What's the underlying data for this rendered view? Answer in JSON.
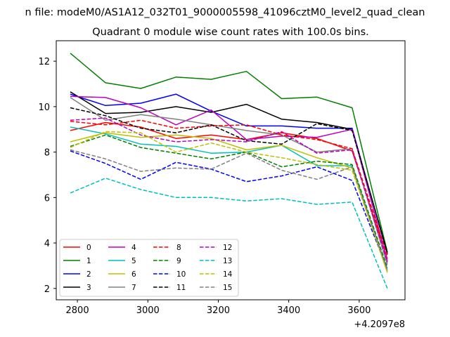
{
  "chart_data": {
    "type": "line",
    "figure_title": "n file: modeM0/AS1A12_032T01_9000005598_41096cztM0_level2_quad_clean",
    "title": "Quadrant 0 module wise count rates with 100.0s bins.",
    "xlabel": "",
    "ylabel": "",
    "offset_label": "+4.2097e8",
    "xlim": [
      2740,
      3730
    ],
    "ylim": [
      1.5,
      12.9
    ],
    "xticks": [
      2800,
      3000,
      3200,
      3400,
      3600
    ],
    "yticks": [
      2,
      4,
      6,
      8,
      10,
      12
    ],
    "x": [
      2780,
      2880,
      2980,
      3080,
      3180,
      3280,
      3380,
      3480,
      3580,
      3680
    ],
    "legend_position": "lower-left",
    "series": [
      {
        "name": "0",
        "color": "#ff0000",
        "style": "solid",
        "values": [
          8.95,
          9.3,
          9.1,
          8.6,
          8.75,
          8.55,
          8.85,
          8.6,
          8.05,
          3.3
        ]
      },
      {
        "name": "1",
        "color": "#008000",
        "style": "solid",
        "values": [
          12.35,
          11.05,
          10.8,
          11.3,
          11.2,
          11.55,
          10.35,
          10.42,
          9.95,
          3.6
        ]
      },
      {
        "name": "2",
        "color": "#0000ff",
        "style": "solid",
        "values": [
          10.55,
          10.05,
          10.15,
          10.55,
          9.8,
          9.15,
          9.15,
          9.05,
          9.05,
          3.5
        ]
      },
      {
        "name": "3",
        "color": "#000000",
        "style": "solid",
        "values": [
          10.65,
          9.7,
          9.75,
          10.0,
          9.75,
          10.1,
          9.45,
          9.3,
          9.0,
          3.55
        ]
      },
      {
        "name": "4",
        "color": "#bf00bf",
        "style": "solid",
        "values": [
          10.45,
          10.4,
          9.95,
          9.2,
          9.85,
          8.55,
          8.7,
          8.65,
          9.0,
          3.2
        ]
      },
      {
        "name": "5",
        "color": "#00bfbf",
        "style": "solid",
        "values": [
          9.1,
          8.8,
          8.35,
          8.25,
          7.95,
          8.0,
          8.3,
          7.4,
          7.4,
          2.8
        ]
      },
      {
        "name": "6",
        "color": "#bfbf00",
        "style": "solid",
        "values": [
          8.45,
          8.85,
          8.65,
          8.75,
          8.6,
          8.1,
          8.3,
          7.75,
          7.3,
          2.7
        ]
      },
      {
        "name": "7",
        "color": "#808080",
        "style": "solid",
        "values": [
          10.4,
          9.4,
          9.65,
          9.45,
          9.2,
          8.95,
          8.75,
          8.0,
          8.15,
          3.05
        ]
      },
      {
        "name": "8",
        "color": "#ff0000",
        "style": "dashed",
        "values": [
          9.35,
          9.2,
          9.4,
          9.05,
          9.15,
          9.2,
          8.75,
          8.55,
          8.15,
          3.45
        ]
      },
      {
        "name": "9",
        "color": "#008000",
        "style": "dashed",
        "values": [
          8.25,
          8.75,
          8.2,
          7.95,
          7.7,
          8.0,
          7.35,
          7.6,
          7.45,
          2.9
        ]
      },
      {
        "name": "10",
        "color": "#0000ff",
        "style": "dashed",
        "values": [
          8.05,
          7.5,
          6.8,
          7.55,
          7.25,
          6.7,
          6.95,
          7.35,
          6.75,
          2.85
        ]
      },
      {
        "name": "11",
        "color": "#000000",
        "style": "dashed",
        "values": [
          9.95,
          9.6,
          9.05,
          8.85,
          9.2,
          8.5,
          8.35,
          9.25,
          8.95,
          3.6
        ]
      },
      {
        "name": "12",
        "color": "#bf00bf",
        "style": "dashed",
        "values": [
          9.4,
          9.5,
          8.75,
          8.45,
          8.55,
          8.45,
          8.9,
          7.95,
          8.1,
          3.15
        ]
      },
      {
        "name": "13",
        "color": "#00bfbf",
        "style": "dashed",
        "values": [
          6.2,
          6.85,
          6.35,
          6.0,
          6.0,
          5.85,
          5.95,
          5.7,
          5.8,
          2.0
        ]
      },
      {
        "name": "14",
        "color": "#bfbf00",
        "style": "dashed",
        "values": [
          8.2,
          8.9,
          8.85,
          8.0,
          8.4,
          8.0,
          7.75,
          7.45,
          7.2,
          2.75
        ]
      },
      {
        "name": "15",
        "color": "#808080",
        "style": "dashed",
        "values": [
          8.1,
          7.7,
          7.15,
          7.3,
          7.25,
          7.95,
          7.2,
          6.8,
          7.35,
          2.8
        ]
      }
    ]
  }
}
